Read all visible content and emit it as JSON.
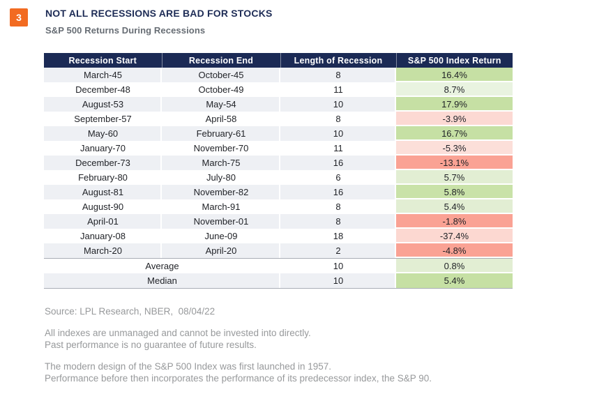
{
  "page": {
    "badge": "3",
    "title": "NOT ALL RECESSIONS ARE BAD FOR STOCKS",
    "subtitle": "S&P 500 Returns During Recessions"
  },
  "colors": {
    "accent_orange": "#f26b21",
    "header_navy": "#1b2a55",
    "row_alt_gray": "#eef0f4",
    "green_medium": "#c6e0a4",
    "green_pale": "#e2eed3",
    "green_palest": "#e9f3e0",
    "pink_pale": "#fcd9d3",
    "salmon_strong": "#faa294"
  },
  "table": {
    "columns": [
      "Recession Start",
      "Recession End",
      "Length of Recession",
      "S&P 500 Index Return"
    ],
    "rows": [
      {
        "start": "March-45",
        "end": "October-45",
        "length": "8",
        "return": "16.4%",
        "return_bg": "#c6e0a4"
      },
      {
        "start": "December-48",
        "end": "October-49",
        "length": "11",
        "return": "8.7%",
        "return_bg": "#e9f3e0"
      },
      {
        "start": "August-53",
        "end": "May-54",
        "length": "10",
        "return": "17.9%",
        "return_bg": "#c6e0a4"
      },
      {
        "start": "September-57",
        "end": "April-58",
        "length": "8",
        "return": "-3.9%",
        "return_bg": "#fcd9d3"
      },
      {
        "start": "May-60",
        "end": "February-61",
        "length": "10",
        "return": "16.7%",
        "return_bg": "#c6e0a4"
      },
      {
        "start": "January-70",
        "end": "November-70",
        "length": "11",
        "return": "-5.3%",
        "return_bg": "#fcdfd9"
      },
      {
        "start": "December-73",
        "end": "March-75",
        "length": "16",
        "return": "-13.1%",
        "return_bg": "#faa294"
      },
      {
        "start": "February-80",
        "end": "July-80",
        "length": "6",
        "return": "5.7%",
        "return_bg": "#e2eed3"
      },
      {
        "start": "August-81",
        "end": "November-82",
        "length": "16",
        "return": "5.8%",
        "return_bg": "#c9e2a8"
      },
      {
        "start": "August-90",
        "end": "March-91",
        "length": "8",
        "return": "5.4%",
        "return_bg": "#e2eed3"
      },
      {
        "start": "April-01",
        "end": "November-01",
        "length": "8",
        "return": "-1.8%",
        "return_bg": "#faa294"
      },
      {
        "start": "January-08",
        "end": "June-09",
        "length": "18",
        "return": "-37.4%",
        "return_bg": "#fcd8d1"
      },
      {
        "start": "March-20",
        "end": "April-20",
        "length": "2",
        "return": "-4.8%",
        "return_bg": "#faa294"
      },
      {
        "label": "Average",
        "type": "average",
        "length": "10",
        "return": "0.8%",
        "return_bg": "#e2eed3"
      },
      {
        "label": "Median",
        "type": "median",
        "length": "10",
        "return": "5.4%",
        "return_bg": "#c6e0a4"
      }
    ]
  },
  "footer": {
    "source": "Source: LPL Research, NBER,  08/04/22",
    "disclaimer1": "All indexes are unmanaged and cannot be invested into directly.",
    "disclaimer2": "Past performance is no guarantee of future results.",
    "note1": "The modern design of the S&P 500 Index was first launched in 1957.",
    "note2": "Performance before then incorporates the performance of its predecessor index, the S&P 90."
  },
  "chart_data": {
    "type": "table",
    "title": "NOT ALL RECESSIONS ARE BAD FOR STOCKS",
    "subtitle": "S&P 500 Returns During Recessions",
    "columns": [
      "Recession Start",
      "Recession End",
      "Length of Recession",
      "S&P 500 Index Return"
    ],
    "rows": [
      [
        "March-45",
        "October-45",
        8,
        "16.4%"
      ],
      [
        "December-48",
        "October-49",
        11,
        "8.7%"
      ],
      [
        "August-53",
        "May-54",
        10,
        "17.9%"
      ],
      [
        "September-57",
        "April-58",
        8,
        "-3.9%"
      ],
      [
        "May-60",
        "February-61",
        10,
        "16.7%"
      ],
      [
        "January-70",
        "November-70",
        11,
        "-5.3%"
      ],
      [
        "December-73",
        "March-75",
        16,
        "-13.1%"
      ],
      [
        "February-80",
        "July-80",
        6,
        "5.7%"
      ],
      [
        "August-81",
        "November-82",
        16,
        "5.8%"
      ],
      [
        "August-90",
        "March-91",
        8,
        "5.4%"
      ],
      [
        "April-01",
        "November-01",
        8,
        "-1.8%"
      ],
      [
        "January-08",
        "June-09",
        18,
        "-37.4%"
      ],
      [
        "March-20",
        "April-20",
        2,
        "-4.8%"
      ]
    ],
    "summary": [
      {
        "label": "Average",
        "length": 10,
        "return": "0.8%"
      },
      {
        "label": "Median",
        "length": 10,
        "return": "5.4%"
      }
    ],
    "legend": "green = positive S&P 500 return, red = negative S&P 500 return",
    "source": "LPL Research, NBER, 08/04/22"
  }
}
